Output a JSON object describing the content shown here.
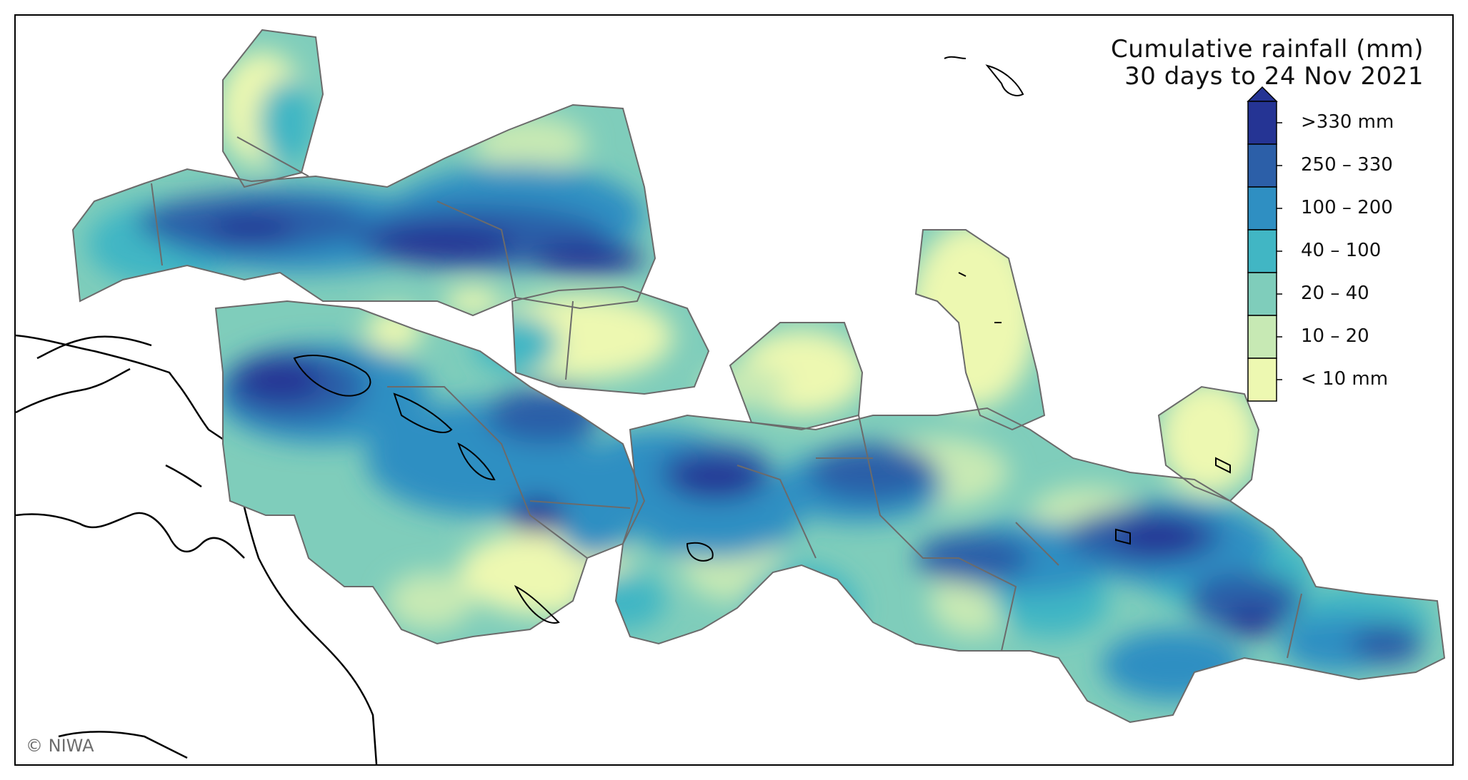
{
  "title": {
    "line1": "Cumulative rainfall (mm)",
    "line2": "30 days to 24 Nov 2021"
  },
  "legend": {
    "entries": [
      {
        "label": ">330 mm",
        "color": "#253494"
      },
      {
        "label": "250 – 330",
        "color": "#2c5fa8"
      },
      {
        "label": "100 – 200",
        "color": "#2f8fc2"
      },
      {
        "label": "40 – 100",
        "color": "#41b6c4"
      },
      {
        "label": "20 – 40",
        "color": "#7fcdbb"
      },
      {
        "label": "10 – 20",
        "color": "#c7e9b4"
      },
      {
        "label": "< 10 mm",
        "color": "#edf8b1"
      }
    ],
    "extend": "max"
  },
  "credit": "© NIWA",
  "colors": {
    "region_border": "#6b6b6b",
    "coastline": "#000000"
  }
}
